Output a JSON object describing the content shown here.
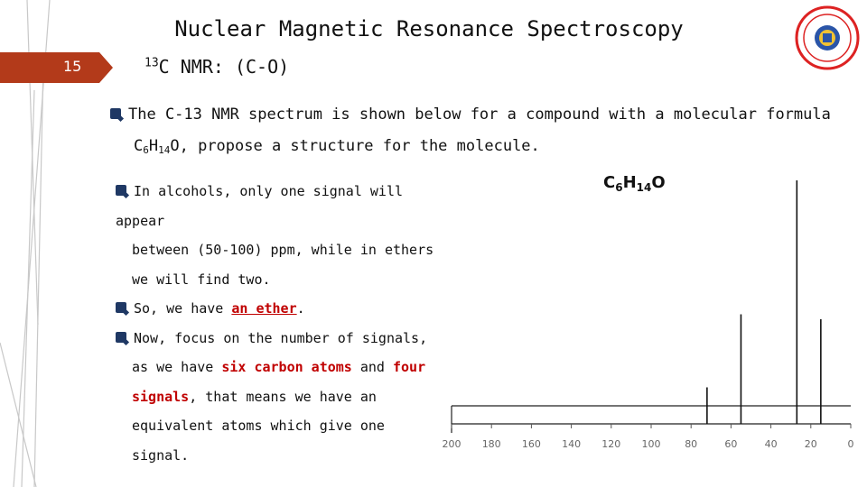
{
  "slide": {
    "number": "15",
    "title": "Nuclear Magnetic Resonance Spectroscopy",
    "subtitle": {
      "sup": "13",
      "text": "C NMR: (C-O)"
    }
  },
  "question": {
    "line1": "The C-13 NMR spectrum is shown below for a compound with a molecular formula",
    "formula_c": "C",
    "formula_c_n": "6",
    "formula_h": "H",
    "formula_h_n": "14",
    "formula_rest": "O, propose a structure for the molecule."
  },
  "bullets": {
    "b1_line1": "In alcohols, only one signal will appear",
    "b1_line2": "between (50-100) ppm, while in ethers",
    "b1_line3": "we will find two.",
    "b2_pre": "So, we have ",
    "b2_em": "an ether",
    "b2_post": ".",
    "b3_line1": "Now, focus on the number of signals,",
    "b3_pre": "as we have ",
    "b3_em1": "six carbon atoms",
    "b3_mid": " and ",
    "b3_em2": "four",
    "b3_em3": "signals",
    "b3_post": ", that means we have an",
    "b3_line4": "equivalent atoms which give one signal."
  },
  "spectrum_label": {
    "c": "C",
    "c_n": "6",
    "h": "H",
    "h_n": "14",
    "o": "O"
  },
  "chart_data": {
    "type": "line",
    "title": "",
    "xlabel": "",
    "ylabel": "",
    "x_ticks": [
      "200",
      "180",
      "160",
      "140",
      "120",
      "100",
      "80",
      "60",
      "40",
      "20",
      "0"
    ],
    "xlim": [
      200,
      0
    ],
    "peaks": [
      {
        "ppm": 72,
        "height": 0.15
      },
      {
        "ppm": 55,
        "height": 0.45
      },
      {
        "ppm": 27,
        "height": 1.0
      },
      {
        "ppm": 15,
        "height": 0.43
      }
    ]
  },
  "colors": {
    "accent_red": "#c00000",
    "slide_num_bg": "#b33a1a",
    "bullet": "#1f3864"
  }
}
